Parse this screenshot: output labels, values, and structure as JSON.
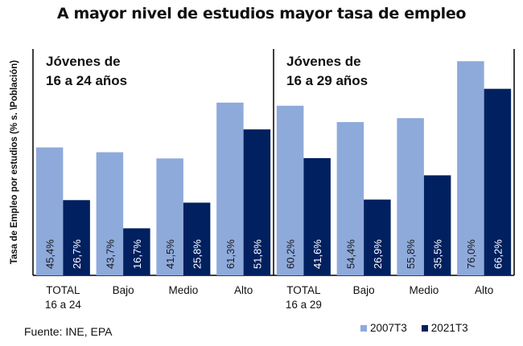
{
  "chart_data": {
    "type": "bar",
    "title": "A mayor nivel de estudios mayor tasa de empleo",
    "ylabel": "Tasa de Empleo por estudios (% s. \\Población)",
    "xlabel": "",
    "ylim": [
      0,
      80
    ],
    "grid": false,
    "legend_position": "bottom-right",
    "panels": [
      {
        "label_line1": "Jóvenes de",
        "label_line2": "16 a 24 años",
        "categories": [
          {
            "line1": "TOTAL",
            "line2": "16 a 24"
          },
          {
            "line1": "Bajo",
            "line2": ""
          },
          {
            "line1": "Medio",
            "line2": ""
          },
          {
            "line1": "Alto",
            "line2": ""
          }
        ],
        "series": [
          {
            "name": "2007T3",
            "values": [
              45.4,
              43.7,
              41.5,
              61.3
            ],
            "labels": [
              "45,4%",
              "43,7%",
              "41,5%",
              "61,3%"
            ]
          },
          {
            "name": "2021T3",
            "values": [
              26.7,
              16.7,
              25.8,
              51.8
            ],
            "labels": [
              "26,7%",
              "16,7%",
              "25,8%",
              "51,8%"
            ]
          }
        ]
      },
      {
        "label_line1": "Jóvenes de",
        "label_line2": "16 a 29 años",
        "categories": [
          {
            "line1": "TOTAL",
            "line2": "16 a 29"
          },
          {
            "line1": "Bajo",
            "line2": ""
          },
          {
            "line1": "Medio",
            "line2": ""
          },
          {
            "line1": "Alto",
            "line2": ""
          }
        ],
        "series": [
          {
            "name": "2007T3",
            "values": [
              60.2,
              54.4,
              55.8,
              76.0
            ],
            "labels": [
              "60,2%",
              "54,4%",
              "55,8%",
              "76,0%"
            ]
          },
          {
            "name": "2021T3",
            "values": [
              41.6,
              26.9,
              35.5,
              66.2
            ],
            "labels": [
              "41,6%",
              "26,9%",
              "35,5%",
              "66,2%"
            ]
          }
        ]
      }
    ],
    "legend": [
      {
        "name": "2007T3",
        "color": "#8eaadb"
      },
      {
        "name": "2021T3",
        "color": "#002060"
      }
    ]
  },
  "source": "Fuente: INE, EPA"
}
